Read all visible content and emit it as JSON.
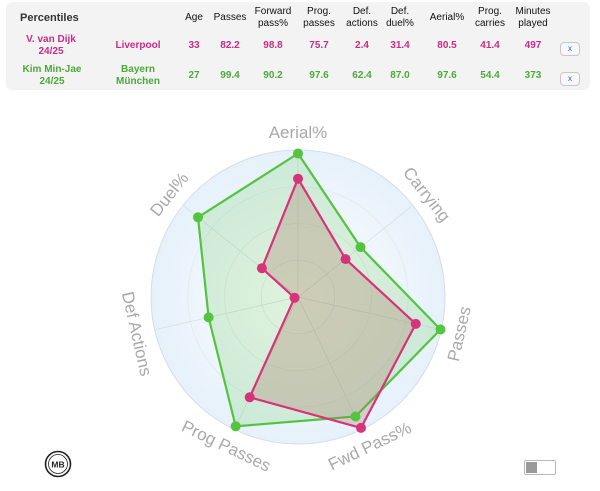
{
  "table": {
    "headers": {
      "percentiles": "Percentiles",
      "age": "Age",
      "passes": "Passes",
      "forward_pass_l1": "Forward",
      "forward_pass_l2": "pass%",
      "prog_passes_l1": "Prog.",
      "prog_passes_l2": "passes",
      "def_actions_l1": "Def.",
      "def_actions_l2": "actions",
      "def_duel_l1": "Def.",
      "def_duel_l2": "duel%",
      "aerial": "Aerial%",
      "prog_carries_l1": "Prog.",
      "prog_carries_l2": "carries",
      "minutes_l1": "Minutes",
      "minutes_l2": "played"
    },
    "rows": [
      {
        "player": "V. van Dijk",
        "season": "24/25",
        "team_l1": "Liverpool",
        "team_l2": "",
        "age": "33",
        "passes": "82.2",
        "forward_pass": "98.8",
        "prog_passes": "75.7",
        "def_actions": "2.4",
        "def_duel": "31.4",
        "aerial": "80.5",
        "prog_carries": "41.4",
        "minutes": "497",
        "remove_label": "x",
        "color": "#d8327a"
      },
      {
        "player": "Kim Min-Jae",
        "season": "24/25",
        "team_l1": "Bayern",
        "team_l2": "München",
        "age": "27",
        "passes": "99.4",
        "forward_pass": "90.2",
        "prog_passes": "97.6",
        "def_actions": "62.4",
        "def_duel": "87.0",
        "aerial": "97.6",
        "prog_carries": "54.4",
        "minutes": "373",
        "remove_label": "x",
        "color": "#52c43e"
      }
    ]
  },
  "chart_data": {
    "type": "radar",
    "axes": [
      "Aerial%",
      "Carrying",
      "Passes",
      "Fwd Pass%",
      "Prog Passes",
      "Def Actions",
      "Duel%"
    ],
    "range": [
      0,
      100
    ],
    "series": [
      {
        "name": "V. van Dijk",
        "color": "#d8327a",
        "values": [
          80.5,
          41.4,
          82.2,
          98.8,
          75.7,
          2.4,
          31.4
        ]
      },
      {
        "name": "Kim Min-Jae",
        "color": "#52c43e",
        "values": [
          97.6,
          54.4,
          99.4,
          90.2,
          97.6,
          62.4,
          87.0
        ]
      }
    ]
  },
  "footer": {
    "logo_text": "MB",
    "logo_icon": "mb-logo-icon",
    "toggle_icon": "toggle-switch-icon",
    "toggle_state": "off"
  }
}
